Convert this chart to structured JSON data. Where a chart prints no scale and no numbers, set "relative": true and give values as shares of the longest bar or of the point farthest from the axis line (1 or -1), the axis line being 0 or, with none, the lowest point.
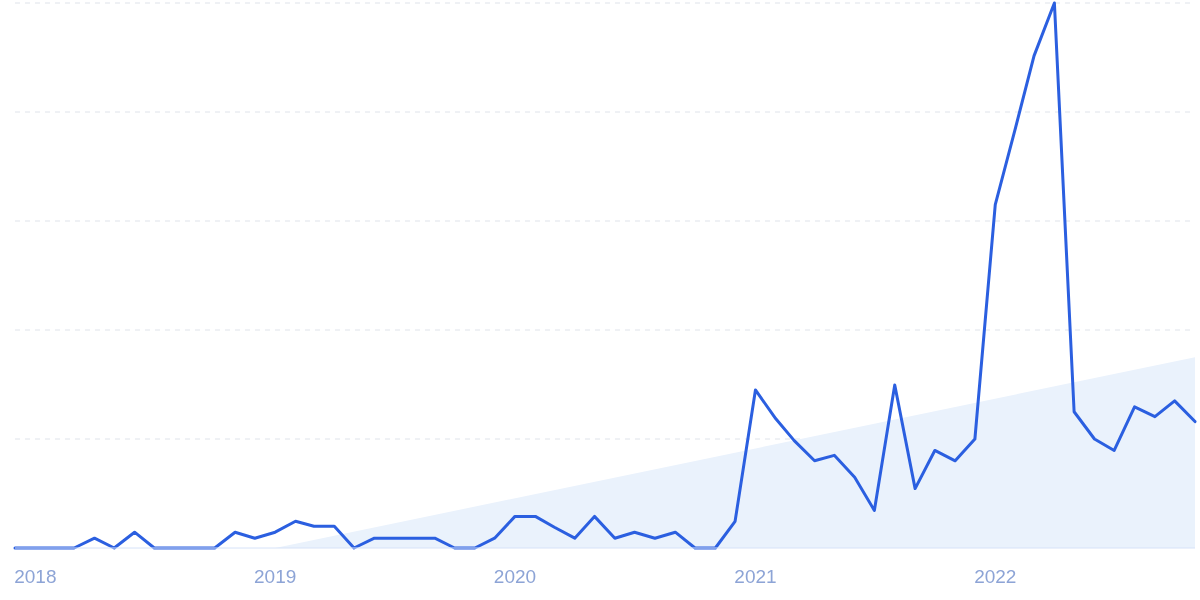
{
  "chart_data": {
    "type": "line",
    "relative": true,
    "grid": "y",
    "xlim": [
      "2017-12",
      "2022-11"
    ],
    "xticks": [
      "2018",
      "2019",
      "2020",
      "2021",
      "2022"
    ],
    "x": [
      "2017-12",
      "2018-01",
      "2018-02",
      "2018-03",
      "2018-04",
      "2018-05",
      "2018-06",
      "2018-07",
      "2018-08",
      "2018-09",
      "2018-10",
      "2018-11",
      "2018-12",
      "2019-01",
      "2019-02",
      "2019-03",
      "2019-04",
      "2019-05",
      "2019-06",
      "2019-07",
      "2019-08",
      "2019-09",
      "2019-10",
      "2019-11",
      "2019-12",
      "2020-01",
      "2020-02",
      "2020-03",
      "2020-04",
      "2020-05",
      "2020-06",
      "2020-07",
      "2020-08",
      "2020-09",
      "2020-10",
      "2020-11",
      "2020-12",
      "2021-01",
      "2021-02",
      "2021-03",
      "2021-04",
      "2021-05",
      "2021-06",
      "2021-07",
      "2021-08",
      "2021-09",
      "2021-10",
      "2021-11",
      "2021-12",
      "2022-01",
      "2022-02",
      "2022-03",
      "2022-04",
      "2022-05",
      "2022-06",
      "2022-07",
      "2022-08",
      "2022-09",
      "2022-10",
      "2022-11"
    ],
    "series": [
      {
        "type": "area",
        "color": "#eaf2fc",
        "x": [
          "2019-01",
          "2022-11"
        ],
        "values": [
          0,
          0.35
        ]
      },
      {
        "color": "#2b5fe0",
        "values": [
          0,
          0,
          0,
          0,
          0.018,
          0,
          0.029,
          0,
          0,
          0,
          0,
          0.029,
          0.018,
          0.029,
          0.049,
          0.04,
          0.04,
          0,
          0.018,
          0.018,
          0.018,
          0.018,
          0,
          0,
          0.018,
          0.058,
          0.058,
          0.038,
          0.018,
          0.058,
          0.018,
          0.029,
          0.018,
          0.029,
          0,
          0,
          0.049,
          0.29,
          0.237,
          0.197,
          0.16,
          0.17,
          0.13,
          0.069,
          0.299,
          0.109,
          0.179,
          0.16,
          0.2,
          0.63,
          0.772,
          0.903,
          1,
          0.25,
          0.2,
          0.179,
          0.259,
          0.241,
          0.27,
          0.232
        ]
      }
    ]
  }
}
